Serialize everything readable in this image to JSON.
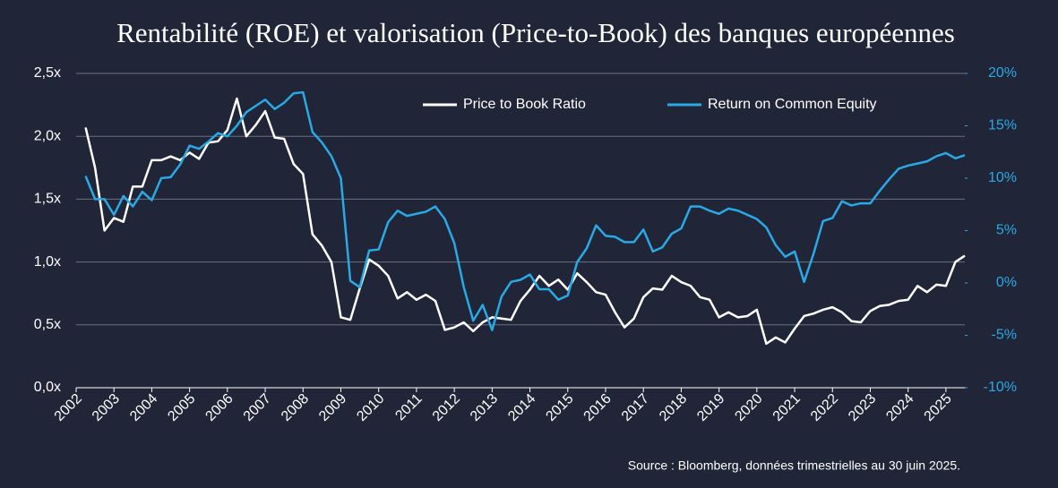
{
  "chart_data": {
    "type": "line",
    "title": "Rentabilité (ROE) et valorisation (Price-to-Book) des banques européennes",
    "source": "Source : Bloomberg, données trimestrielles au 30 juin 2025.",
    "x": [
      2002.25,
      2002.5,
      2002.75,
      2003,
      2003.25,
      2003.5,
      2003.75,
      2004,
      2004.25,
      2004.5,
      2004.75,
      2005,
      2005.25,
      2005.5,
      2005.75,
      2006,
      2006.25,
      2006.5,
      2006.75,
      2007,
      2007.25,
      2007.5,
      2007.75,
      2008,
      2008.25,
      2008.5,
      2008.75,
      2009,
      2009.25,
      2009.5,
      2009.75,
      2010,
      2010.25,
      2010.5,
      2010.75,
      2011,
      2011.25,
      2011.5,
      2011.75,
      2012,
      2012.25,
      2012.5,
      2012.75,
      2013,
      2013.25,
      2013.5,
      2013.75,
      2014,
      2014.25,
      2014.5,
      2014.75,
      2015,
      2015.25,
      2015.5,
      2015.75,
      2016,
      2016.25,
      2016.5,
      2016.75,
      2017,
      2017.25,
      2017.5,
      2017.75,
      2018,
      2018.25,
      2018.5,
      2018.75,
      2019,
      2019.25,
      2019.5,
      2019.75,
      2020,
      2020.25,
      2020.5,
      2020.75,
      2021,
      2021.25,
      2021.5,
      2021.75,
      2022,
      2022.25,
      2022.5,
      2022.75,
      2023,
      2023.25,
      2023.5,
      2023.75,
      2024,
      2024.25,
      2024.5,
      2024.75,
      2025,
      2025.25,
      2025.5
    ],
    "series": [
      {
        "name": "Price to Book Ratio",
        "color": "#ffffff",
        "axis": "y",
        "values": [
          2.07,
          1.75,
          1.25,
          1.35,
          1.32,
          1.6,
          1.6,
          1.81,
          1.81,
          1.84,
          1.81,
          1.87,
          1.82,
          1.95,
          1.96,
          2.05,
          2.3,
          2.0,
          2.09,
          2.2,
          1.99,
          1.98,
          1.78,
          1.7,
          1.22,
          1.13,
          1.0,
          0.56,
          0.54,
          0.79,
          1.02,
          0.97,
          0.89,
          0.71,
          0.76,
          0.7,
          0.74,
          0.69,
          0.46,
          0.48,
          0.52,
          0.45,
          0.52,
          0.56,
          0.55,
          0.54,
          0.69,
          0.78,
          0.89,
          0.81,
          0.86,
          0.78,
          0.91,
          0.84,
          0.76,
          0.74,
          0.6,
          0.48,
          0.55,
          0.72,
          0.79,
          0.78,
          0.89,
          0.84,
          0.81,
          0.72,
          0.7,
          0.56,
          0.6,
          0.56,
          0.57,
          0.62,
          0.35,
          0.4,
          0.36,
          0.47,
          0.57,
          0.59,
          0.62,
          0.64,
          0.6,
          0.53,
          0.52,
          0.61,
          0.65,
          0.66,
          0.69,
          0.7,
          0.81,
          0.76,
          0.82,
          0.81,
          1.0,
          1.05
        ]
      },
      {
        "name": "Return on Common Equity",
        "color": "#29a9e6",
        "axis": "y2",
        "values": [
          10.2,
          8,
          8,
          6.5,
          8.3,
          7.3,
          8.7,
          7.9,
          10,
          10.1,
          11.3,
          13.1,
          12.8,
          13.5,
          14.3,
          14,
          15,
          16.3,
          16.9,
          17.5,
          16.6,
          17.2,
          18.1,
          18.2,
          14.4,
          13.4,
          12.1,
          10,
          0.2,
          -0.4,
          3.1,
          3.2,
          5.8,
          6.9,
          6.4,
          6.6,
          6.8,
          7.3,
          6.1,
          3.8,
          -0.4,
          -3.6,
          -2.1,
          -4.5,
          -1.3,
          0.1,
          0.3,
          0.8,
          -0.6,
          -0.6,
          -1.6,
          -1.2,
          2,
          3.3,
          5.5,
          4.5,
          4.4,
          3.9,
          3.9,
          5.1,
          3,
          3.4,
          4.7,
          5.2,
          7.3,
          7.3,
          6.9,
          6.6,
          7.1,
          6.9,
          6.5,
          6.1,
          5.3,
          3.6,
          2.5,
          3,
          0.1,
          2.8,
          5.9,
          6.2,
          7.8,
          7.4,
          7.6,
          7.6,
          8.8,
          9.9,
          10.9,
          11.2,
          11.4,
          11.6,
          12.1,
          12.4,
          11.9,
          12.2
        ]
      }
    ],
    "xlim": [
      2002,
      2025.5
    ],
    "xticks": [
      2002,
      2003,
      2004,
      2005,
      2006,
      2007,
      2008,
      2009,
      2010,
      2011,
      2012,
      2013,
      2014,
      2015,
      2016,
      2017,
      2018,
      2019,
      2020,
      2021,
      2022,
      2023,
      2024,
      2025
    ],
    "ylim": [
      0,
      2.5
    ],
    "yticks": [
      {
        "value": 0,
        "label": "0,0x"
      },
      {
        "value": 0.5,
        "label": "0,5x"
      },
      {
        "value": 1,
        "label": "1,0x"
      },
      {
        "value": 1.5,
        "label": "1,5x"
      },
      {
        "value": 2,
        "label": "2,0x"
      },
      {
        "value": 2.5,
        "label": "2,5x"
      }
    ],
    "y2lim": [
      -10,
      20
    ],
    "y2ticks": [
      {
        "value": -10,
        "label": "-10%"
      },
      {
        "value": -5,
        "label": "-5%"
      },
      {
        "value": 0,
        "label": "0%"
      },
      {
        "value": 5,
        "label": "5%"
      },
      {
        "value": 10,
        "label": "10%"
      },
      {
        "value": 15,
        "label": "15%"
      },
      {
        "value": 20,
        "label": "20%"
      }
    ],
    "grid": true,
    "legend": "top"
  }
}
